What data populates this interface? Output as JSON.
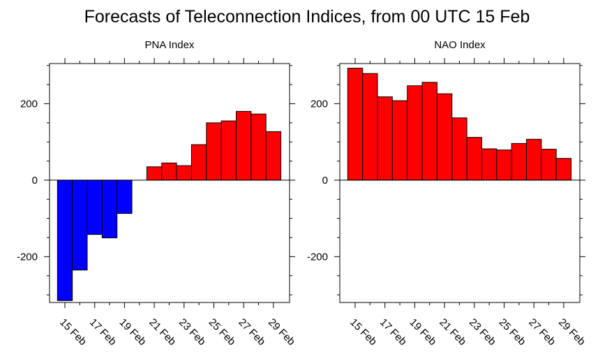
{
  "title": "Forecasts of Teleconnection Indices, from 00 UTC 15 Feb",
  "colors": {
    "positive": "#ff0000",
    "negative": "#0000ff",
    "outline": "#000000"
  },
  "chart_data": [
    {
      "type": "bar",
      "title": "PNA Index",
      "x": [
        "15 Feb",
        "16 Feb",
        "17 Feb",
        "18 Feb",
        "19 Feb",
        "20 Feb",
        "21 Feb",
        "22 Feb",
        "23 Feb",
        "24 Feb",
        "25 Feb",
        "26 Feb",
        "27 Feb",
        "28 Feb",
        "29 Feb"
      ],
      "values": [
        -315,
        -235,
        -142,
        -151,
        -87,
        0,
        35,
        45,
        38,
        93,
        150,
        155,
        180,
        173,
        127
      ],
      "xtick_labels": [
        "15 Feb",
        "17 Feb",
        "19 Feb",
        "21 Feb",
        "23 Feb",
        "25 Feb",
        "27 Feb",
        "29 Feb"
      ],
      "yticks": [
        -200,
        0,
        200
      ],
      "ylim": [
        -320,
        305
      ],
      "grid": false
    },
    {
      "type": "bar",
      "title": "NAO Index",
      "x": [
        "15 Feb",
        "16 Feb",
        "17 Feb",
        "18 Feb",
        "19 Feb",
        "20 Feb",
        "21 Feb",
        "22 Feb",
        "23 Feb",
        "24 Feb",
        "25 Feb",
        "26 Feb",
        "27 Feb",
        "28 Feb",
        "29 Feb"
      ],
      "values": [
        293,
        279,
        218,
        208,
        247,
        256,
        226,
        163,
        112,
        82,
        79,
        96,
        107,
        81,
        57
      ],
      "xtick_labels": [
        "15 Feb",
        "17 Feb",
        "19 Feb",
        "21 Feb",
        "23 Feb",
        "25 Feb",
        "27 Feb",
        "29 Feb"
      ],
      "yticks": [
        -200,
        0,
        200
      ],
      "ylim": [
        -320,
        305
      ],
      "grid": false
    }
  ]
}
